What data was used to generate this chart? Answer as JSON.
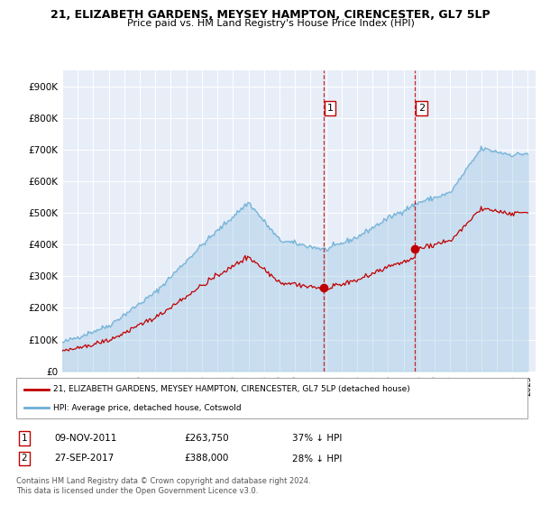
{
  "title1": "21, ELIZABETH GARDENS, MEYSEY HAMPTON, CIRENCESTER, GL7 5LP",
  "title2": "Price paid vs. HM Land Registry's House Price Index (HPI)",
  "ylim": [
    0,
    950000
  ],
  "yticks": [
    0,
    100000,
    200000,
    300000,
    400000,
    500000,
    600000,
    700000,
    800000,
    900000
  ],
  "ytick_labels": [
    "£0",
    "£100K",
    "£200K",
    "£300K",
    "£400K",
    "£500K",
    "£600K",
    "£700K",
    "£800K",
    "£900K"
  ],
  "hpi_color": "#6baed6",
  "price_color": "#c00000",
  "sale1_date": 2011.85,
  "sale1_price": 263750,
  "sale2_date": 2017.74,
  "sale2_price": 388000,
  "legend_label1": "21, ELIZABETH GARDENS, MEYSEY HAMPTON, CIRENCESTER, GL7 5LP (detached house)",
  "legend_label2": "HPI: Average price, detached house, Cotswold",
  "annotation1_label": "09-NOV-2011",
  "annotation1_price": "£263,750",
  "annotation1_pct": "37% ↓ HPI",
  "annotation2_label": "27-SEP-2017",
  "annotation2_price": "£388,000",
  "annotation2_pct": "28% ↓ HPI",
  "footer": "Contains HM Land Registry data © Crown copyright and database right 2024.\nThis data is licensed under the Open Government Licence v3.0.",
  "plot_bg_color": "#e8eef8"
}
